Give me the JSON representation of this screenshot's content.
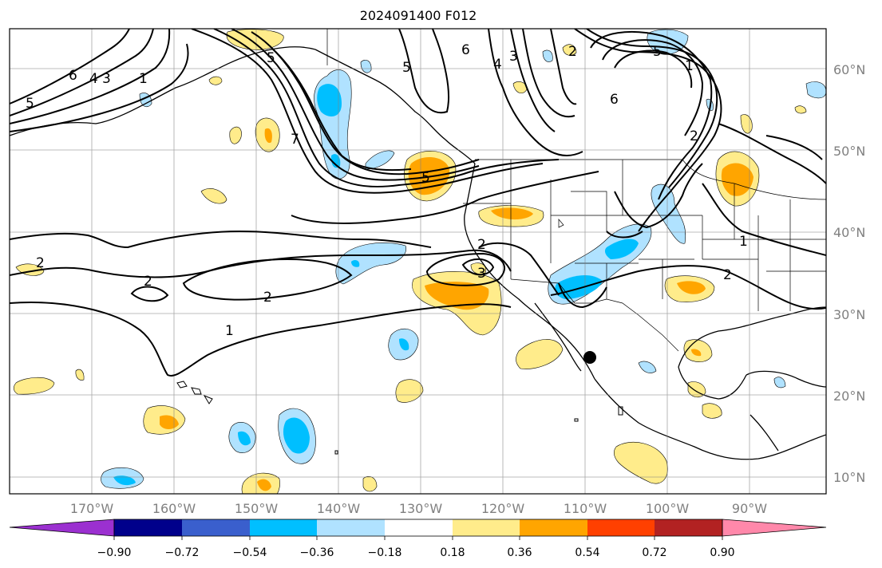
{
  "title": "2024091400 F012",
  "map": {
    "lon_range": [
      -180,
      -82
    ],
    "lat_range": [
      8,
      65
    ],
    "lon_ticks": [
      "170°W",
      "160°W",
      "150°W",
      "140°W",
      "130°W",
      "120°W",
      "110°W",
      "100°W",
      "90°W"
    ],
    "lat_ticks": [
      "10°N",
      "20°N",
      "30°N",
      "40°N",
      "50°N",
      "60°N"
    ],
    "grid": true,
    "marker": {
      "lon": -109,
      "lat": 24.5,
      "label": ""
    }
  },
  "colorbar": {
    "ticks": [
      "−0.90",
      "−0.72",
      "−0.54",
      "−0.36",
      "−0.18",
      "0.18",
      "0.36",
      "0.54",
      "0.72",
      "0.90"
    ],
    "colors": {
      "under": "#9b30d0",
      "b1": "#00008b",
      "b2": "#3a5fcd",
      "b3": "#00bfff",
      "b4": "#b0e2ff",
      "mid": "#ffffff",
      "p1": "#ffec8b",
      "p2": "#ffa500",
      "p3": "#ff4000",
      "p4": "#b22222",
      "over": "#ff88aa"
    }
  },
  "contour_labels": [
    "6",
    "4",
    "3",
    "1",
    "5",
    "5",
    "6",
    "4",
    "3",
    "5",
    "6",
    "1",
    "2",
    "7",
    "5",
    "2",
    "2",
    "2",
    "3",
    "1",
    "2",
    "1",
    "2",
    "5",
    "2"
  ]
}
